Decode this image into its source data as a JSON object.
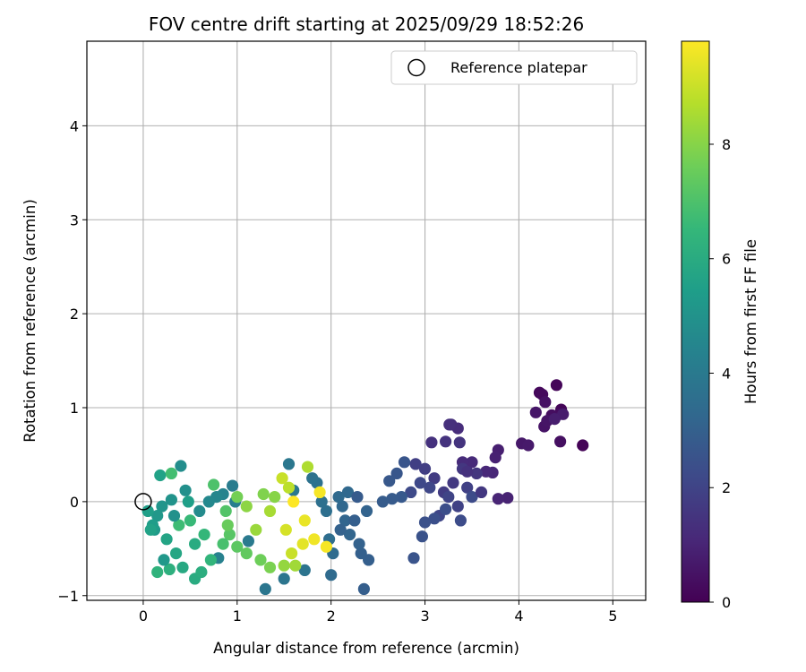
{
  "chart_data": {
    "type": "scatter",
    "title": "FOV centre drift starting at 2025/09/29 18:52:26",
    "xlabel": "Angular distance from reference (arcmin)",
    "ylabel": "Rotation from reference (arcmin)",
    "xlim": [
      -0.6,
      5.35
    ],
    "ylim": [
      -1.05,
      4.9
    ],
    "xticks": [
      "0",
      "1",
      "2",
      "3",
      "4",
      "5"
    ],
    "yticks": [
      "−1",
      "0",
      "1",
      "2",
      "3",
      "4"
    ],
    "grid": true,
    "legend": {
      "placement": "top-right",
      "label": "Reference platepar"
    },
    "reference_point": {
      "x": 0,
      "y": 0
    },
    "colorbar": {
      "label": "Hours from first FF file",
      "colormap": "viridis",
      "range": [
        0,
        9.8
      ],
      "ticks": [
        "0",
        "2",
        "4",
        "6",
        "8"
      ]
    },
    "colors": {
      "viridis": [
        "#440154",
        "#482878",
        "#3e4989",
        "#31688e",
        "#26828e",
        "#1f9e89",
        "#35b779",
        "#6ece58",
        "#b5de2b",
        "#fde725"
      ],
      "grid": "#b0b0b0",
      "axis": "#000000"
    },
    "series": [
      {
        "points": [
          [
            4.68,
            0.6,
            0.05
          ],
          [
            4.45,
            0.98,
            0.1
          ],
          [
            4.4,
            1.24,
            0.15
          ],
          [
            4.22,
            1.16,
            0.2
          ],
          [
            4.25,
            1.14,
            0.25
          ],
          [
            4.43,
            0.93,
            0.3
          ],
          [
            4.35,
            0.92,
            0.35
          ],
          [
            4.44,
            0.64,
            0.4
          ],
          [
            4.28,
            1.06,
            0.45
          ],
          [
            4.27,
            0.8,
            0.5
          ],
          [
            4.3,
            0.86,
            0.55
          ],
          [
            4.18,
            0.95,
            0.6
          ],
          [
            4.03,
            0.62,
            0.65
          ],
          [
            4.1,
            0.6,
            0.7
          ],
          [
            4.47,
            0.93,
            0.75
          ],
          [
            4.38,
            0.88,
            0.8
          ],
          [
            3.78,
            0.55,
            0.85
          ],
          [
            3.75,
            0.47,
            0.9
          ],
          [
            3.88,
            0.04,
            0.95
          ],
          [
            3.78,
            0.03,
            1.0
          ],
          [
            3.72,
            0.31,
            1.05
          ],
          [
            3.65,
            0.32,
            1.1
          ],
          [
            3.5,
            0.42,
            1.15
          ],
          [
            3.4,
            0.42,
            1.2
          ],
          [
            3.35,
            0.78,
            1.25
          ],
          [
            3.28,
            0.82,
            1.3
          ],
          [
            3.26,
            0.82,
            1.35
          ],
          [
            3.07,
            0.63,
            1.4
          ],
          [
            3.22,
            0.64,
            1.45
          ],
          [
            3.37,
            0.63,
            1.5
          ],
          [
            3.55,
            0.3,
            1.55
          ],
          [
            3.4,
            0.35,
            1.6
          ],
          [
            3.3,
            0.2,
            1.65
          ],
          [
            3.2,
            0.1,
            1.7
          ],
          [
            3.1,
            0.25,
            1.75
          ],
          [
            3.0,
            0.35,
            1.8
          ],
          [
            2.9,
            0.4,
            1.85
          ],
          [
            3.45,
            0.15,
            1.9
          ],
          [
            3.35,
            -0.05,
            1.95
          ],
          [
            3.25,
            0.05,
            2.0
          ],
          [
            3.15,
            -0.15,
            2.05
          ],
          [
            3.05,
            0.15,
            2.1
          ],
          [
            2.95,
            0.2,
            2.15
          ],
          [
            2.85,
            0.1,
            2.2
          ],
          [
            3.5,
            0.05,
            2.25
          ],
          [
            3.38,
            -0.2,
            2.3
          ],
          [
            3.22,
            -0.08,
            2.35
          ],
          [
            3.1,
            -0.18,
            2.4
          ],
          [
            3.0,
            -0.22,
            2.45
          ],
          [
            2.97,
            -0.37,
            2.5
          ],
          [
            2.88,
            -0.6,
            2.55
          ],
          [
            2.78,
            0.42,
            2.6
          ],
          [
            2.7,
            0.3,
            2.65
          ],
          [
            2.62,
            0.22,
            2.7
          ],
          [
            2.75,
            0.05,
            2.75
          ],
          [
            2.65,
            0.03,
            2.8
          ],
          [
            2.55,
            0.0,
            2.85
          ],
          [
            2.35,
            -0.93,
            2.9
          ],
          [
            2.4,
            -0.62,
            2.95
          ],
          [
            2.32,
            -0.55,
            3.0
          ],
          [
            2.3,
            -0.45,
            3.05
          ],
          [
            2.38,
            -0.1,
            3.1
          ],
          [
            2.2,
            -0.35,
            3.15
          ],
          [
            2.15,
            -0.2,
            3.2
          ],
          [
            2.12,
            -0.05,
            3.25
          ],
          [
            2.18,
            0.1,
            3.3
          ],
          [
            2.08,
            0.05,
            3.35
          ],
          [
            2.0,
            -0.78,
            3.4
          ],
          [
            2.02,
            -0.55,
            3.45
          ],
          [
            1.98,
            -0.4,
            3.5
          ],
          [
            1.95,
            -0.1,
            3.55
          ],
          [
            1.9,
            0.0,
            3.6
          ],
          [
            1.85,
            0.2,
            3.65
          ],
          [
            1.8,
            0.25,
            3.7
          ],
          [
            1.72,
            -0.73,
            3.75
          ],
          [
            1.5,
            -0.82,
            3.8
          ],
          [
            1.3,
            -0.93,
            3.85
          ],
          [
            1.55,
            0.4,
            3.9
          ],
          [
            1.6,
            0.12,
            3.95
          ],
          [
            1.12,
            -0.42,
            4.0
          ],
          [
            0.95,
            0.17,
            4.1
          ],
          [
            0.98,
            0.0,
            4.2
          ],
          [
            0.8,
            -0.6,
            4.3
          ],
          [
            0.85,
            0.08,
            4.4
          ],
          [
            0.78,
            0.05,
            4.5
          ],
          [
            0.7,
            0.0,
            4.6
          ],
          [
            0.6,
            -0.1,
            4.7
          ],
          [
            0.4,
            0.38,
            4.8
          ],
          [
            0.45,
            0.12,
            4.9
          ],
          [
            0.3,
            0.02,
            5.0
          ],
          [
            0.2,
            -0.05,
            5.1
          ],
          [
            0.15,
            -0.15,
            5.2
          ],
          [
            0.12,
            -0.3,
            5.3
          ],
          [
            0.1,
            -0.25,
            5.4
          ],
          [
            0.05,
            -0.1,
            5.5
          ],
          [
            0.18,
            0.28,
            5.6
          ],
          [
            0.25,
            -0.4,
            5.7
          ],
          [
            0.35,
            -0.55,
            5.8
          ],
          [
            0.42,
            -0.7,
            5.9
          ],
          [
            0.55,
            -0.82,
            6.0
          ],
          [
            0.62,
            -0.75,
            6.1
          ],
          [
            0.28,
            -0.72,
            6.2
          ],
          [
            0.15,
            -0.75,
            6.3
          ],
          [
            0.72,
            -0.62,
            6.4
          ],
          [
            0.65,
            -0.35,
            6.5
          ],
          [
            0.5,
            -0.2,
            6.6
          ],
          [
            0.38,
            -0.25,
            6.7
          ],
          [
            0.3,
            0.3,
            6.8
          ],
          [
            0.75,
            0.18,
            7.0
          ],
          [
            0.88,
            -0.1,
            7.1
          ],
          [
            0.92,
            -0.35,
            7.2
          ],
          [
            1.0,
            -0.48,
            7.3
          ],
          [
            1.1,
            -0.55,
            7.4
          ],
          [
            1.25,
            -0.62,
            7.6
          ],
          [
            1.35,
            -0.7,
            7.8
          ],
          [
            1.28,
            0.08,
            7.9
          ],
          [
            1.4,
            0.05,
            8.0
          ],
          [
            1.5,
            -0.68,
            8.2
          ],
          [
            1.62,
            -0.68,
            8.4
          ],
          [
            1.75,
            0.37,
            8.6
          ],
          [
            1.55,
            0.15,
            8.8
          ],
          [
            1.48,
            0.25,
            9.0
          ],
          [
            1.52,
            -0.3,
            9.2
          ],
          [
            1.7,
            -0.45,
            9.4
          ],
          [
            1.82,
            -0.4,
            9.6
          ],
          [
            1.95,
            -0.48,
            9.7
          ],
          [
            1.6,
            0.0,
            9.8
          ],
          [
            1.88,
            0.1,
            9.7
          ],
          [
            1.72,
            -0.2,
            9.5
          ],
          [
            1.58,
            -0.55,
            9.0
          ],
          [
            1.35,
            -0.1,
            8.5
          ],
          [
            1.2,
            -0.3,
            8.3
          ],
          [
            1.1,
            -0.05,
            8.1
          ],
          [
            1.0,
            0.05,
            7.7
          ],
          [
            0.9,
            -0.25,
            7.5
          ],
          [
            0.85,
            -0.45,
            6.9
          ],
          [
            0.55,
            -0.45,
            6.0
          ],
          [
            0.48,
            0.0,
            5.5
          ],
          [
            0.22,
            -0.62,
            5.2
          ],
          [
            0.08,
            -0.3,
            5.6
          ],
          [
            0.33,
            -0.15,
            4.95
          ],
          [
            2.25,
            -0.2,
            2.95
          ],
          [
            2.1,
            -0.3,
            3.05
          ],
          [
            2.28,
            0.05,
            2.8
          ],
          [
            3.6,
            0.1,
            1.6
          ],
          [
            3.45,
            0.32,
            1.4
          ]
        ]
      }
    ]
  }
}
